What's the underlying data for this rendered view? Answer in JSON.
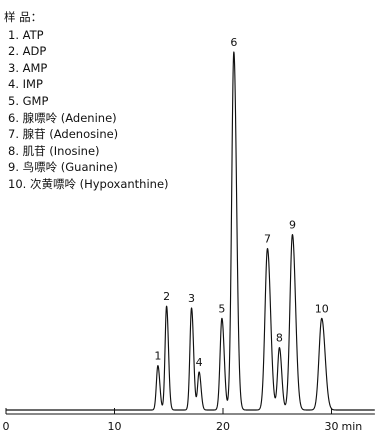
{
  "chart_data": {
    "type": "line",
    "title": "",
    "xlabel": "min",
    "ylabel": "",
    "xlim": [
      0,
      34
    ],
    "ylim": [
      0,
      100
    ],
    "x_ticks": [
      0,
      10,
      20,
      30
    ],
    "x_tick_labels": [
      "0",
      "10",
      "20",
      "30"
    ],
    "x_unit": "min",
    "grid": false,
    "legend_title": "样 品：",
    "legend_position": "top-left",
    "legend": [
      "1. ATP",
      "2. ADP",
      "3. AMP",
      "4. IMP",
      "5. GMP",
      "6. 腺嘌呤 (Adenine)",
      "7. 腺苷 (Adenosine)",
      "8. 肌苷 (Inosine)",
      "9. 鸟嘌呤 (Guanine)",
      "10. 次黄嘌呤 (Hypoxanthine)"
    ],
    "peaks": [
      {
        "label": "1",
        "x": 14.0,
        "height": 12.4
      },
      {
        "label": "2",
        "x": 14.8,
        "height": 29.0
      },
      {
        "label": "3",
        "x": 17.1,
        "height": 28.5
      },
      {
        "label": "4",
        "x": 17.8,
        "height": 10.6
      },
      {
        "label": "5",
        "x": 19.9,
        "height": 25.6
      },
      {
        "label": "6",
        "x": 21.0,
        "height": 100.0
      },
      {
        "label": "7",
        "x": 24.1,
        "height": 45.1
      },
      {
        "label": "8",
        "x": 25.2,
        "height": 17.4
      },
      {
        "label": "9",
        "x": 26.4,
        "height": 49.0
      },
      {
        "label": "10",
        "x": 29.1,
        "height": 25.6
      }
    ]
  }
}
